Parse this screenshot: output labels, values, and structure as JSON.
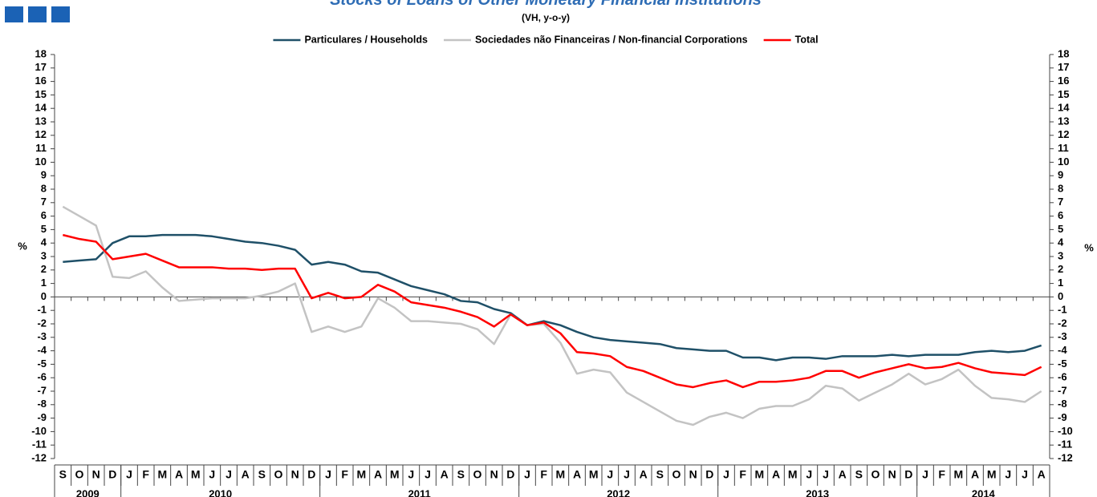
{
  "chart_data": {
    "type": "line",
    "title": "Stocks of Loans of Other Monetary Financial Institutions",
    "subtitle": "(VH, y-o-y)",
    "y_label": "%",
    "y2_label": "%",
    "categories": [
      "S",
      "O",
      "N",
      "D",
      "J",
      "F",
      "M",
      "A",
      "M",
      "J",
      "J",
      "A",
      "S",
      "O",
      "N",
      "D",
      "J",
      "F",
      "M",
      "A",
      "M",
      "J",
      "J",
      "A",
      "S",
      "O",
      "N",
      "D",
      "J",
      "F",
      "M",
      "A",
      "M",
      "J",
      "J",
      "A",
      "S",
      "O",
      "N",
      "D",
      "J",
      "F",
      "M",
      "A",
      "M",
      "J",
      "J",
      "A",
      "S",
      "O",
      "N",
      "D",
      "J",
      "F",
      "M",
      "A",
      "M",
      "J",
      "J",
      "A"
    ],
    "years": [
      "2009",
      "2010",
      "2011",
      "2012",
      "2013",
      "2014"
    ],
    "series": [
      {
        "name": "Particulares / Households",
        "color": "#1f5068",
        "values": [
          2.6,
          2.7,
          2.8,
          4.0,
          4.5,
          4.5,
          4.6,
          4.6,
          4.6,
          4.5,
          4.3,
          4.1,
          4.0,
          3.8,
          3.5,
          2.4,
          2.6,
          2.4,
          1.9,
          1.8,
          1.3,
          0.8,
          0.5,
          0.2,
          -0.3,
          -0.4,
          -0.9,
          -1.2,
          -2.1,
          -1.8,
          -2.1,
          -2.6,
          -3.0,
          -3.2,
          -3.3,
          -3.4,
          -3.5,
          -3.8,
          -3.9,
          -4.0,
          -4.0,
          -4.5,
          -4.5,
          -4.7,
          -4.5,
          -4.5,
          -4.6,
          -4.4,
          -4.4,
          -4.4,
          -4.3,
          -4.4,
          -4.3,
          -4.3,
          -4.3,
          -4.1,
          -4.0,
          -4.1,
          -4.0,
          -3.6
        ]
      },
      {
        "name": "Sociedades não Financeiras / Non-financial Corporations",
        "color": "#c3c3c3",
        "values": [
          6.7,
          6.0,
          5.3,
          1.5,
          1.4,
          1.9,
          0.7,
          -0.3,
          -0.2,
          -0.1,
          -0.1,
          -0.1,
          0.1,
          0.4,
          1.0,
          -2.6,
          -2.2,
          -2.6,
          -2.2,
          -0.1,
          -0.8,
          -1.8,
          -1.8,
          -1.9,
          -2.0,
          -2.4,
          -3.5,
          -1.3,
          -2.1,
          -2.0,
          -3.4,
          -5.7,
          -5.4,
          -5.6,
          -7.1,
          -7.8,
          -8.5,
          -9.2,
          -9.5,
          -8.9,
          -8.6,
          -9.0,
          -8.3,
          -8.1,
          -8.1,
          -7.6,
          -6.6,
          -6.8,
          -7.7,
          -7.1,
          -6.5,
          -5.7,
          -6.5,
          -6.1,
          -5.4,
          -6.6,
          -7.5,
          -7.6,
          -7.8,
          -7.0
        ]
      },
      {
        "name": "Total",
        "color": "#ff0000",
        "values": [
          4.6,
          4.3,
          4.1,
          2.8,
          3.0,
          3.2,
          2.7,
          2.2,
          2.2,
          2.2,
          2.1,
          2.1,
          2.0,
          2.1,
          2.1,
          -0.1,
          0.3,
          -0.1,
          0.0,
          0.9,
          0.4,
          -0.4,
          -0.6,
          -0.8,
          -1.1,
          -1.5,
          -2.2,
          -1.3,
          -2.1,
          -1.9,
          -2.7,
          -4.1,
          -4.2,
          -4.4,
          -5.2,
          -5.5,
          -6.0,
          -6.5,
          -6.7,
          -6.4,
          -6.2,
          -6.7,
          -6.3,
          -6.3,
          -6.2,
          -6.0,
          -5.5,
          -5.5,
          -6.0,
          -5.6,
          -5.3,
          -5.0,
          -5.3,
          -5.2,
          -4.9,
          -5.3,
          -5.6,
          -5.7,
          -5.8,
          -5.2
        ]
      }
    ],
    "ylim": [
      -12,
      18
    ],
    "yticks": [
      -12,
      -11,
      -10,
      -9,
      -8,
      -7,
      -6,
      -5,
      -4,
      -3,
      -2,
      -1,
      0,
      1,
      2,
      3,
      4,
      5,
      6,
      7,
      8,
      9,
      10,
      11,
      12,
      13,
      14,
      15,
      16,
      17,
      18
    ],
    "y2lim": [
      -12,
      18
    ],
    "y2ticks": [
      -12,
      -11,
      -10,
      -9,
      -8,
      -7,
      -6,
      -5,
      -4,
      -3,
      -2,
      -1,
      0,
      1,
      2,
      3,
      4,
      5,
      6,
      7,
      8,
      9,
      10,
      11,
      12,
      13,
      14,
      15,
      16,
      17,
      18
    ],
    "legend": "top"
  }
}
